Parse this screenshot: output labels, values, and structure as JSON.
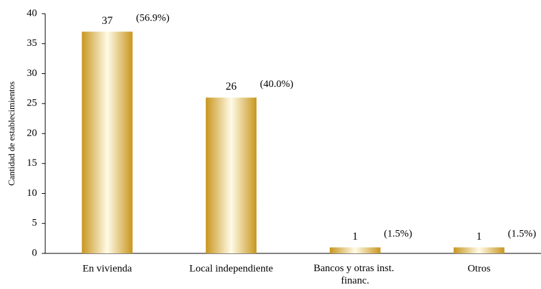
{
  "chart_data": {
    "type": "bar",
    "y_label": "Cantidad de establecimientos",
    "categories": [
      "En vivienda",
      "Local independiente",
      "Bancos y otras inst. financ.",
      "Otros"
    ],
    "values": [
      37,
      26,
      1,
      1
    ],
    "annotations": [
      "(56.9%)",
      "(40.0%)",
      "(1.5%)",
      "(1.5%)"
    ],
    "color": "#d4a52c",
    "ylim": [
      0,
      40
    ],
    "yticks": [
      0,
      5,
      10,
      15,
      20,
      25,
      30,
      35,
      40
    ],
    "grid": false
  }
}
